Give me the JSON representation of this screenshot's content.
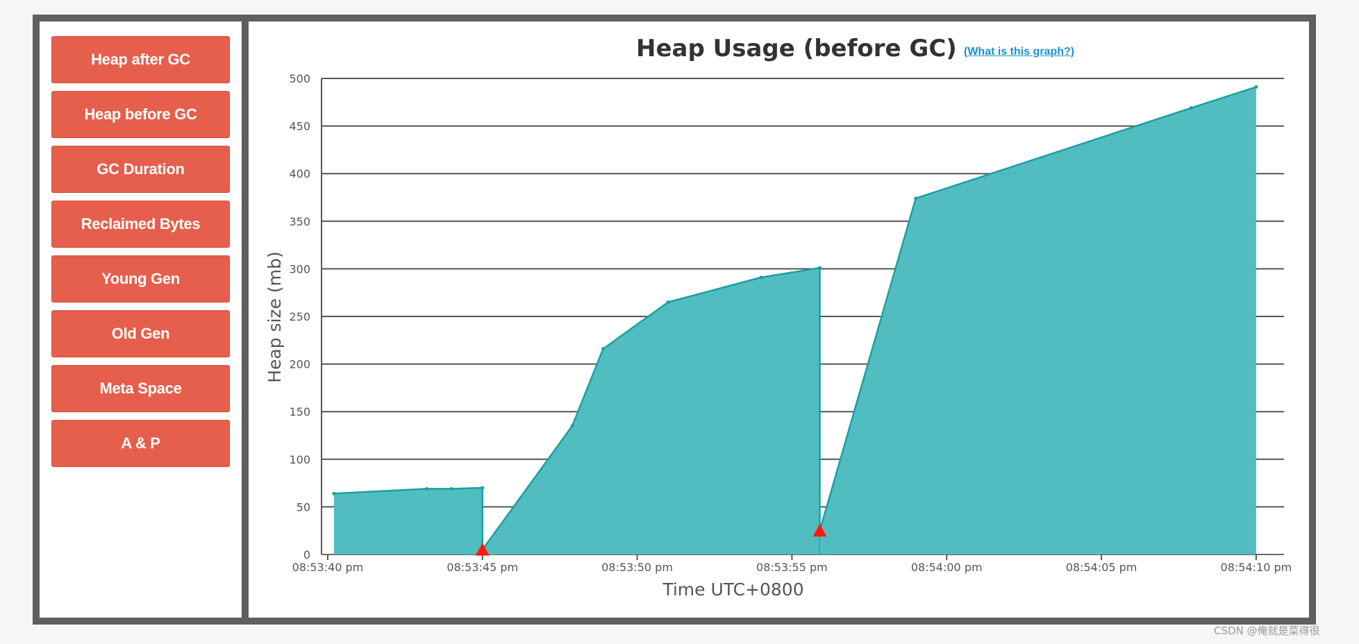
{
  "sidebar": {
    "items": [
      {
        "label": "Heap after GC"
      },
      {
        "label": "Heap before GC"
      },
      {
        "label": "GC Duration"
      },
      {
        "label": "Reclaimed Bytes"
      },
      {
        "label": "Young Gen"
      },
      {
        "label": "Old Gen"
      },
      {
        "label": "Meta Space"
      },
      {
        "label": "A & P"
      }
    ]
  },
  "header": {
    "help_link": "(What is this graph?)"
  },
  "watermark": "CSDN @俺就是菜得很",
  "colors": {
    "button": "#e55f4c",
    "area": "#4fbcc0",
    "line": "#1a9fa3",
    "gc_marker": "#ff1a0d",
    "frame": "#5f5f5f",
    "link": "#1a8fd0"
  },
  "chart_data": {
    "type": "area",
    "title": "Heap Usage (before GC)",
    "xlabel": "Time UTC+0800",
    "ylabel": "Heap size (mb)",
    "ylim": [
      0,
      500
    ],
    "yticks": [
      0,
      50,
      100,
      150,
      200,
      250,
      300,
      350,
      400,
      450,
      500
    ],
    "xticks": [
      "08:53:40 pm",
      "08:53:45 pm",
      "08:53:50 pm",
      "08:53:55 pm",
      "08:54:00 pm",
      "08:54:05 pm",
      "08:54:10 pm"
    ],
    "xlim": [
      "08:53:39.8 pm",
      "08:54:10.9 pm"
    ],
    "grid": true,
    "series": [
      {
        "segments": [
          [
            [
              "08:53:40.2 pm",
              64
            ],
            [
              "08:53:43.2 pm",
              69
            ],
            [
              "08:53:44.0 pm",
              69
            ],
            [
              "08:53:45.0 pm",
              70
            ],
            [
              "08:53:45.0 pm",
              0
            ]
          ],
          [
            [
              "08:53:45.0 pm",
              5
            ],
            [
              "08:53:47.9 pm",
              135
            ],
            [
              "08:53:48.9 pm",
              216
            ],
            [
              "08:53:51.0 pm",
              265
            ],
            [
              "08:53:54.0 pm",
              291
            ],
            [
              "08:53:55.9 pm",
              301
            ],
            [
              "08:53:55.9 pm",
              0
            ]
          ],
          [
            [
              "08:53:55.9 pm",
              25
            ],
            [
              "08:53:59.0 pm",
              374
            ],
            [
              "08:54:07.9 pm",
              469
            ],
            [
              "08:54:10.0 pm",
              491
            ]
          ]
        ]
      }
    ],
    "gc_events": [
      {
        "time": "08:53:45.0 pm",
        "value": 5
      },
      {
        "time": "08:53:55.9 pm",
        "value": 25
      }
    ]
  }
}
